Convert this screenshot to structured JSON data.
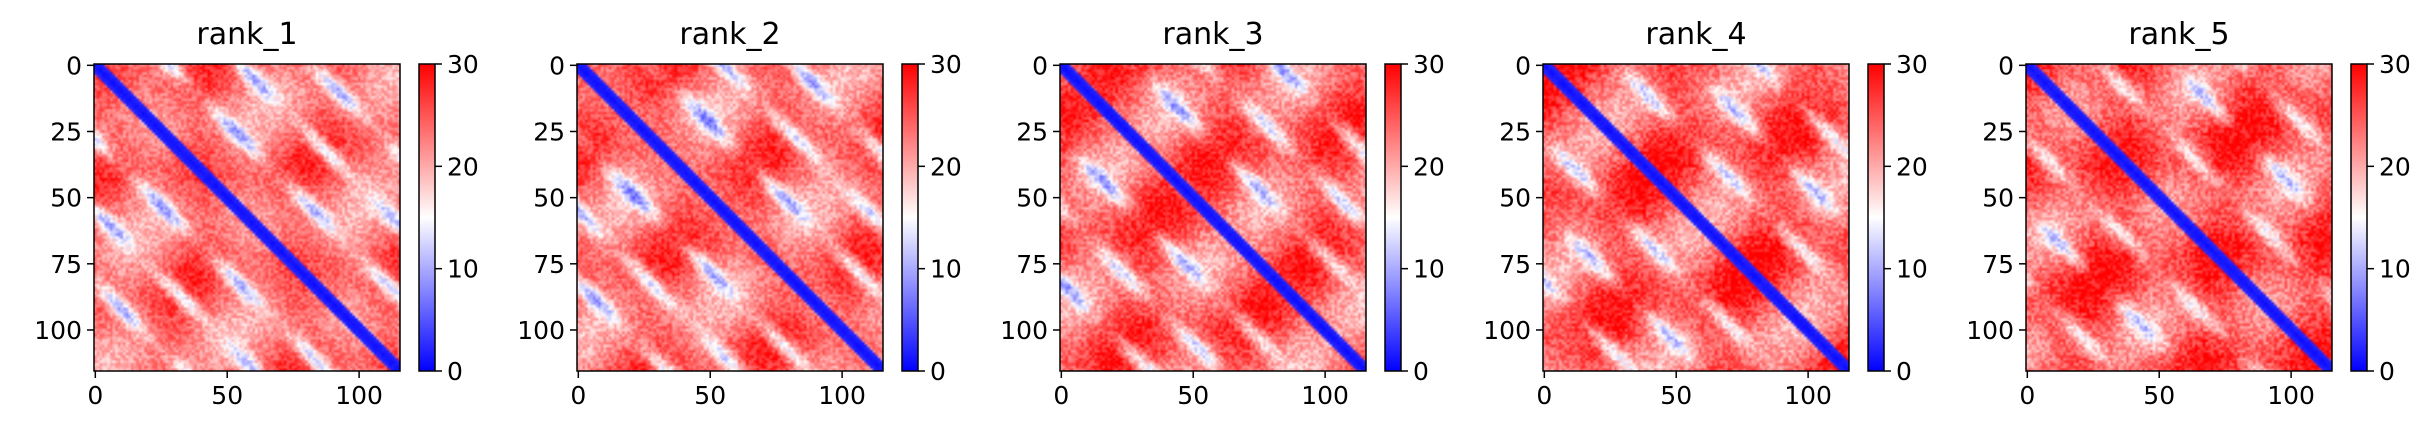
{
  "chart_data": {
    "type": "heatmap",
    "colormap": {
      "name": "bwr",
      "low": "#0000ff",
      "mid": "#ffffff",
      "high": "#ff0000"
    },
    "matrix_size": 116,
    "vmin": 0,
    "vmax": 30,
    "x_ticks": [
      "0",
      "50",
      "100"
    ],
    "y_ticks": [
      "0",
      "25",
      "50",
      "75",
      "100"
    ],
    "colorbar_ticks": [
      "0",
      "10",
      "20",
      "30"
    ],
    "panels": [
      {
        "title": "rank_1",
        "contrast": 0.45
      },
      {
        "title": "rank_2",
        "contrast": 0.55
      },
      {
        "title": "rank_3",
        "contrast": 0.75
      },
      {
        "title": "rank_4",
        "contrast": 0.85
      },
      {
        "title": "rank_5",
        "contrast": 1.0
      }
    ]
  }
}
